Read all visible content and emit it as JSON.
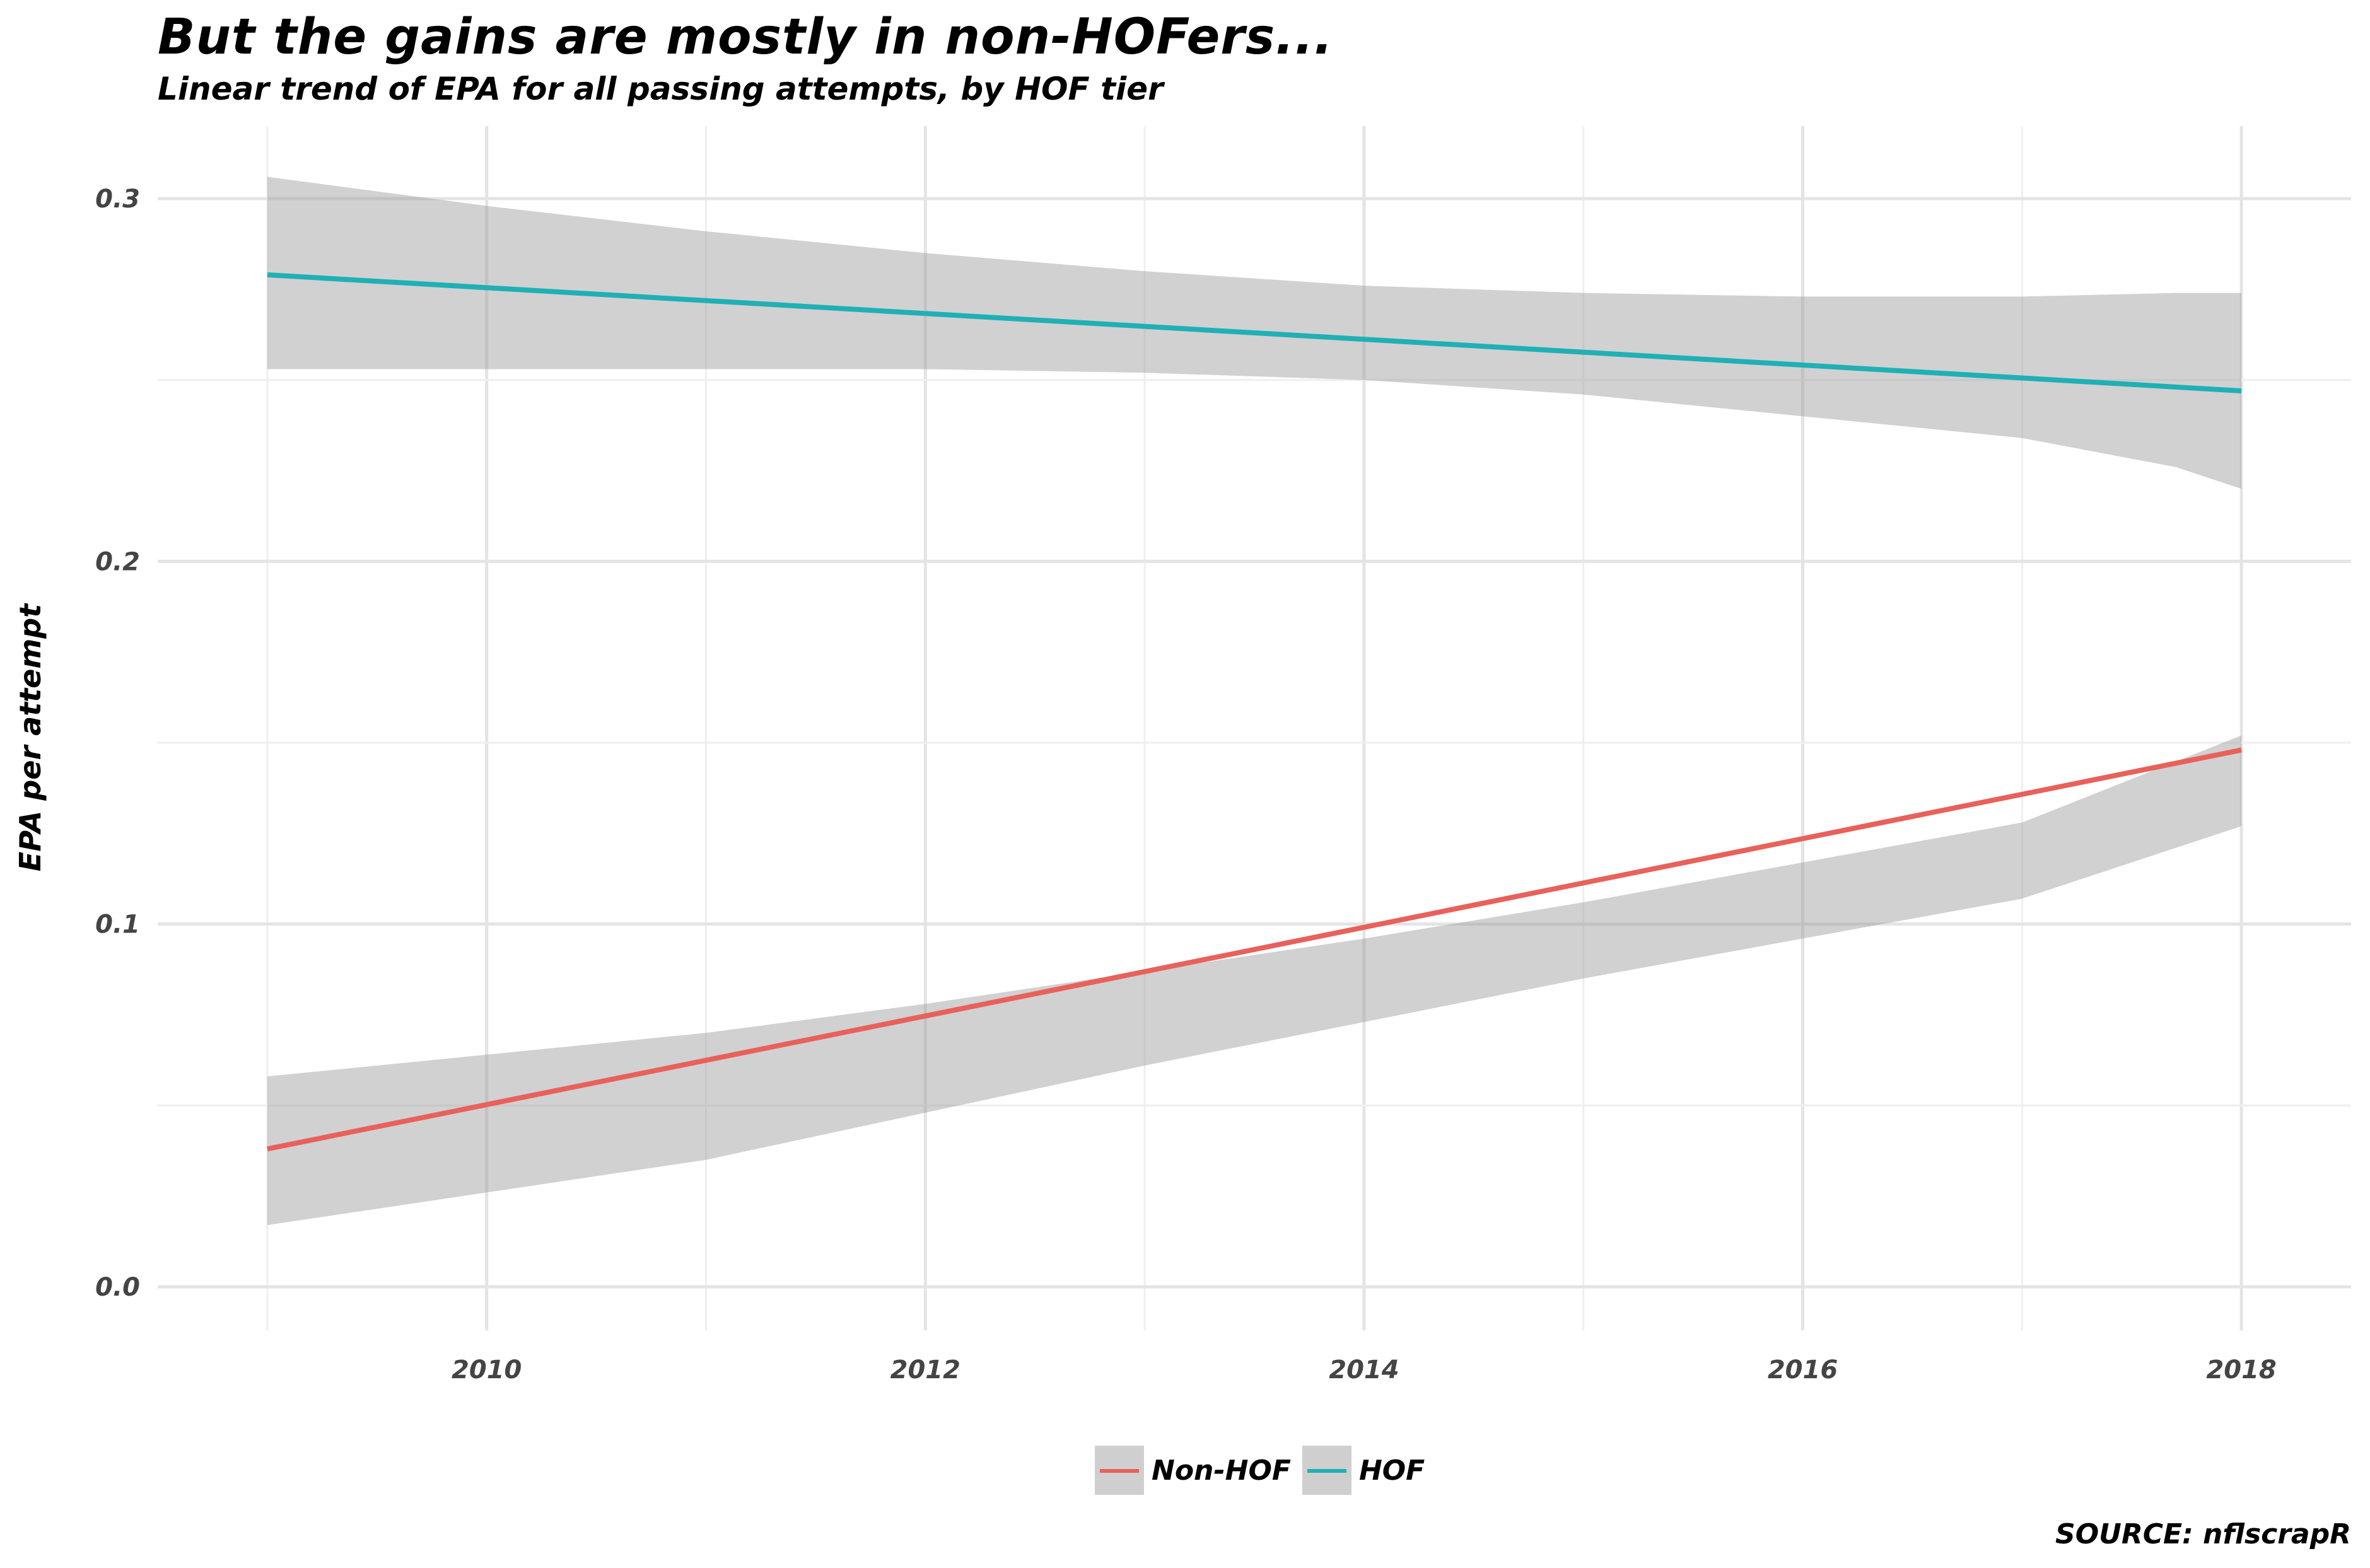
{
  "title": "But the gains are mostly in non-HOFers...",
  "subtitle": "Linear trend of EPA for all passing attempts, by HOF tier",
  "caption": "SOURCE: nflscrapR",
  "chart_data": {
    "type": "line",
    "xlabel": "",
    "ylabel": "EPA per attempt",
    "x_ticks": [
      2010,
      2012,
      2014,
      2016,
      2018
    ],
    "y_ticks": [
      0.0,
      0.1,
      0.2,
      0.3
    ],
    "y_tick_labels": [
      "0.0",
      "0.1",
      "0.2",
      "0.3"
    ],
    "xlim": [
      2008.5,
      2018.5
    ],
    "ylim": [
      -0.012,
      0.32
    ],
    "grid": true,
    "legend_position": "bottom",
    "series": [
      {
        "name": "Non-HOF",
        "color": "#E8615A",
        "x": [
          2009,
          2018
        ],
        "y": [
          0.038,
          0.148
        ],
        "ci_lower": [
          0.021,
          0.017,
          0.026,
          0.035,
          0.048,
          0.061,
          0.073,
          0.085,
          0.096,
          0.107,
          0.117,
          0.127,
          0.132
        ],
        "ci_upper": [
          0.054,
          0.058,
          0.064,
          0.07,
          0.078,
          0.087,
          0.096,
          0.106,
          0.117,
          0.128,
          0.14,
          0.152,
          0.164
        ],
        "ci_x": [
          2009,
          2009,
          2010,
          2011,
          2012,
          2013,
          2014,
          2015,
          2016,
          2017,
          2017.5,
          2018,
          2018
        ]
      },
      {
        "name": "HOF",
        "color": "#1FB0B5",
        "x": [
          2009,
          2018
        ],
        "y": [
          0.279,
          0.247
        ],
        "ci_lower": [
          0.253,
          0.253,
          0.253,
          0.253,
          0.252,
          0.25,
          0.246,
          0.24,
          0.234,
          0.226,
          0.22
        ],
        "ci_upper": [
          0.306,
          0.298,
          0.291,
          0.285,
          0.28,
          0.276,
          0.274,
          0.273,
          0.273,
          0.274,
          0.274
        ],
        "ci_x": [
          2009,
          2010,
          2011,
          2012,
          2013,
          2014,
          2015,
          2016,
          2017,
          2017.7,
          2018
        ]
      }
    ]
  }
}
